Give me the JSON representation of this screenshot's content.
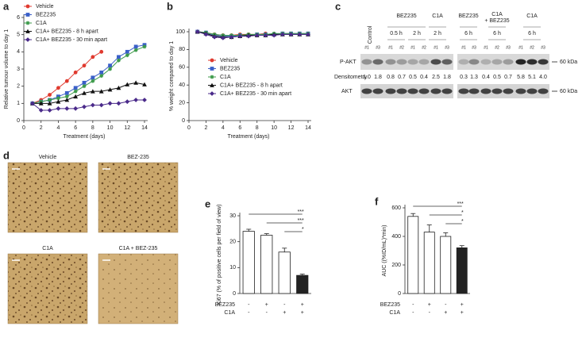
{
  "chart_data": [
    {
      "type": "line",
      "panel": "a",
      "xlabel": "Treatment (days)",
      "ylabel": "Relative tumour volume to day 1",
      "x": [
        1,
        2,
        3,
        4,
        5,
        6,
        7,
        8,
        9,
        10,
        11,
        12,
        13,
        14
      ],
      "xlim": [
        0,
        14
      ],
      "xticks": [
        0,
        2,
        4,
        6,
        8,
        10,
        12,
        14
      ],
      "ylim": [
        0,
        6
      ],
      "yticks": [
        0,
        1,
        2,
        3,
        4,
        5,
        6
      ],
      "series": [
        {
          "name": "Vehicle",
          "color": "#e03a2f",
          "marker": "circle",
          "values": [
            1,
            1.2,
            1.5,
            1.9,
            2.3,
            2.8,
            3.2,
            3.7,
            4.0,
            null,
            null,
            null,
            null,
            null
          ]
        },
        {
          "name": "BEZ235",
          "color": "#3a5fc8",
          "marker": "square",
          "values": [
            1,
            1.1,
            1.2,
            1.4,
            1.6,
            1.9,
            2.2,
            2.5,
            2.8,
            3.2,
            3.7,
            4.0,
            4.3,
            4.4
          ]
        },
        {
          "name": "C1A",
          "color": "#3c9a4a",
          "marker": "cross",
          "values": [
            1,
            1.1,
            1.2,
            1.3,
            1.4,
            1.7,
            2.0,
            2.3,
            2.6,
            3.0,
            3.5,
            3.8,
            4.1,
            4.3
          ]
        },
        {
          "name": "C1A+ BEZ235 - 8 h apart",
          "color": "#111111",
          "marker": "triangle",
          "values": [
            1,
            1.0,
            1.0,
            1.1,
            1.2,
            1.4,
            1.6,
            1.7,
            1.7,
            1.8,
            1.9,
            2.1,
            2.2,
            2.1
          ]
        },
        {
          "name": "C1A+ BEZ235 - 30 min apart",
          "color": "#4a2a8a",
          "marker": "diamond",
          "values": [
            1,
            0.6,
            0.6,
            0.7,
            0.7,
            0.7,
            0.8,
            0.9,
            0.9,
            1.0,
            1.0,
            1.1,
            1.2,
            1.2
          ]
        }
      ]
    },
    {
      "type": "line",
      "panel": "b",
      "xlabel": "Treatment (days)",
      "ylabel": "% weight compared to day 1",
      "x": [
        1,
        2,
        3,
        4,
        5,
        6,
        7,
        8,
        9,
        10,
        11,
        12,
        13,
        14
      ],
      "xlim": [
        0,
        14
      ],
      "xticks": [
        0,
        2,
        4,
        6,
        8,
        10,
        12,
        14
      ],
      "ylim": [
        0,
        100
      ],
      "yticks": [
        0,
        20,
        40,
        60,
        80,
        100
      ],
      "series": [
        {
          "name": "Vehicle",
          "color": "#e03a2f",
          "marker": "circle",
          "values": [
            100,
            99,
            97,
            96,
            96,
            97,
            97,
            97,
            98,
            null,
            null,
            null,
            null,
            null
          ]
        },
        {
          "name": "BEZ235",
          "color": "#3a5fc8",
          "marker": "square",
          "values": [
            100,
            99,
            96,
            95,
            95,
            96,
            96,
            97,
            97,
            97,
            98,
            98,
            98,
            98
          ]
        },
        {
          "name": "C1A",
          "color": "#3c9a4a",
          "marker": "cross",
          "values": [
            100,
            99,
            97,
            96,
            96,
            96,
            97,
            97,
            97,
            98,
            98,
            98,
            98,
            98
          ]
        },
        {
          "name": "C1A+ BEZ235 - 8 h apart",
          "color": "#111111",
          "marker": "triangle",
          "values": [
            100,
            98,
            95,
            94,
            94,
            95,
            96,
            96,
            96,
            97,
            97,
            97,
            97,
            97
          ]
        },
        {
          "name": "C1A+ BEZ235 - 30 min apart",
          "color": "#4a2a8a",
          "marker": "diamond",
          "values": [
            100,
            97,
            94,
            93,
            94,
            95,
            95,
            96,
            96,
            96,
            97,
            97,
            97,
            97
          ]
        }
      ]
    },
    {
      "type": "bar",
      "panel": "e",
      "ylabel": "Ki67 (% of positive cells per field of view)",
      "ylim": [
        0,
        30
      ],
      "yticks": [
        0,
        10,
        20,
        30
      ],
      "values": [
        24,
        22.5,
        16,
        7
      ],
      "errors": [
        0.8,
        0.6,
        1.5,
        0.5
      ],
      "colors": [
        "#ffffff",
        "#ffffff",
        "#ffffff",
        "#222222"
      ],
      "significance": [
        "***",
        "***",
        "*"
      ],
      "conditions": [
        {
          "name": "BEZ235",
          "signs": [
            "-",
            "+",
            "-",
            "+"
          ]
        },
        {
          "name": "C1A",
          "signs": [
            "-",
            "-",
            "+",
            "+"
          ]
        }
      ]
    },
    {
      "type": "bar",
      "panel": "f",
      "ylabel": "AUC ((%ID/mL)*min)",
      "ylim": [
        0,
        600
      ],
      "yticks": [
        0,
        200,
        400,
        600
      ],
      "values": [
        540,
        430,
        400,
        320
      ],
      "errors": [
        20,
        50,
        25,
        15
      ],
      "colors": [
        "#ffffff",
        "#ffffff",
        "#ffffff",
        "#222222"
      ],
      "significance": [
        "***",
        "*",
        "*"
      ],
      "conditions": [
        {
          "name": "BEZ235",
          "signs": [
            "-",
            "+",
            "-",
            "+"
          ]
        },
        {
          "name": "C1A",
          "signs": [
            "-",
            "-",
            "+",
            "+"
          ]
        }
      ]
    }
  ],
  "blot": {
    "panel": "c",
    "control": "Control",
    "groups": [
      {
        "name": "BEZ235",
        "times": [
          "0.5 h",
          "2 h"
        ]
      },
      {
        "name": "C1A",
        "times": [
          "2 h"
        ]
      },
      {
        "name": "BEZ235",
        "times": [
          "6 h"
        ]
      },
      {
        "name": "C1A + BEZ235",
        "times": [
          "6 h"
        ]
      },
      {
        "name": "C1A",
        "times": [
          "6 h"
        ]
      }
    ],
    "lanes_left": [
      "#1",
      "#3",
      "#1",
      "#2",
      "#1",
      "#2",
      "#1",
      "#3"
    ],
    "lanes_right": [
      "#1",
      "#3",
      "#1",
      "#2",
      "#3",
      "#1",
      "#2",
      "#3"
    ],
    "rows": [
      "P-AKT",
      "Densitometry",
      "AKT"
    ],
    "marker": "60 kDa",
    "densitometry_left": [
      "1.0",
      "1.8",
      "0.8",
      "0.7",
      "0.5",
      "0.4",
      "2.5",
      "1.8"
    ],
    "densitometry_right": [
      "0.3",
      "1.3",
      "0.4",
      "0.5",
      "0.7",
      "5.8",
      "5.1",
      "4.0"
    ]
  },
  "micrographs": {
    "panel": "d",
    "labels": [
      "Vehicle",
      "BEZ-235",
      "C1A",
      "C1A + BEZ-235"
    ]
  }
}
